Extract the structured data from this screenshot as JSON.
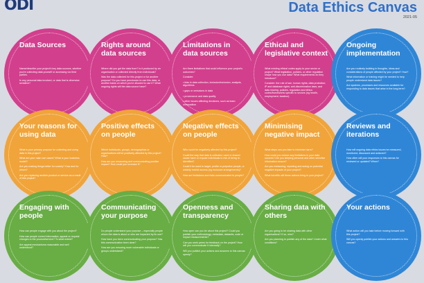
{
  "header": {
    "logo": "ODI",
    "title": "Data Ethics Canvas",
    "version": "2021-05"
  },
  "colors": {
    "pink": "#d23f8d",
    "orange": "#f0a43a",
    "green": "#69ad45",
    "blue": "#2f86d6",
    "title_blue": "#2f6fc9",
    "logo_navy": "#1f3b79"
  },
  "sections": [
    {
      "title": "Data Sources",
      "body": [
        "Name/describe your project's key data sources, whether you're collecting data yourself or accessing via third parties.",
        "Is any personal data involved, or data that is otherwise sensitive?"
      ]
    },
    {
      "title": "Rights around data sources",
      "body": [
        "Where did you get the data from? Is it produced by an organisation or collected directly from individuals?",
        "Was the data collected for this project or for another purpose? Do you have permission to use this data, or another basis on which you're allowed to use it? What ongoing rights will the data source have?"
      ]
    },
    {
      "title": "Limitations in data sources",
      "body": [
        "Are there limitations that could influence your project's outcomes?",
        "Consider:",
        "• bias in data collection, inclusion/exclusion, analysis, algorithms",
        "• gaps or omissions in data",
        "• provenance and data quality",
        "• other issues affecting decisions, such as team composition"
      ]
    },
    {
      "title": "Ethical and legislative context",
      "body": [
        "What existing ethical codes apply to your sector or project? What legislation, policies, or other regulation shape how you use data? What requirements do they introduce?",
        "Consider: the rule of law; human rights; data protection; IP and database rights; anti-discrimination laws; and data sharing, policies, regulation and ethics codes/frameworks specific to sectors (eg health, employment, taxation)."
      ]
    },
    {
      "title": "Ongoing implementation",
      "body": [
        "Are you routinely building in thoughts, ideas and considerations of people affected by your project? How?",
        "What information or training might be needed to help people understand data issues?",
        "Are systems, processes and resources available for responding to data issues that arise in the long-term?"
      ]
    },
    {
      "title": "Your reasons for using data",
      "body": [
        "What is your primary purpose for collecting and using data in this project?",
        "What are your main use cases? What is your business model?",
        "Are you making things better for society? How and for whom?",
        "Are you replacing another product or service as a result of this project?"
      ]
    },
    {
      "title": "Positive effects on people",
      "body": [
        "Which individuals, groups, demographics or organisations will be positively affected by this project? How?",
        "How are you measuring and communicating positive impact? How could you increase it?"
      ]
    },
    {
      "title": "Negative effects on people",
      "body": [
        "Who could be negatively affected by this project?",
        "Could the way that data is collected, used or shared cause harm or expose individuals to risk of being re-identified?",
        "Could it be used to target, profile or prejudice people, or unfairly restrict access (eg exclusive arrangements)?",
        "How are limitations and risks communicated to people?"
      ]
    },
    {
      "title": "Minimising negative impact",
      "body": [
        "What steps can you take to minimise harm?",
        "How could you reduce any limitations in your data sources? Are you keeping personal and other sensitive information secure?",
        "Are you measuring, reporting and acting on potential negative impacts of your project?",
        "What benefits will these actions bring to your project?"
      ]
    },
    {
      "title": "Reviews and iterations",
      "body": [
        "How will ongoing data ethics issues be measured, monitored, discussed and actioned?",
        "How often will your responses to this canvas be reviewed or updated? When?"
      ]
    },
    {
      "title": "Engaging with people",
      "body": [
        "How can people engage with you about the project?",
        "How can people correct information, appeal or request changes to the product/service? To what extent?",
        "Are appeal mechanisms reasonable and well understood?"
      ]
    },
    {
      "title": "Communicating your purpose",
      "body": [
        "Do people understand your purpose – especially people whom the data is about or who are impacted by its use?",
        "How have you been communicating your purpose? Has this communication been clear?",
        "How are you ensuring more vulnerable individuals or groups understand?"
      ]
    },
    {
      "title": "Openness and transparency",
      "body": [
        "How open can you be about this project? Could you publish your methodology, metadata, datasets, code or impact measurements?",
        "Can you seek peers for feedback on the project? How will you communicate it internally?",
        "Will you publish your actions and answers to this canvas openly?"
      ]
    },
    {
      "title": "Sharing data with others",
      "body": [
        "Are you going to be sharing data with other organisations? If so, who?",
        "Are you planning to publish any of the data? Under what conditions?"
      ]
    },
    {
      "title": "Your actions",
      "body": [
        "What action will you take before moving forward with this project?",
        "Will you openly publish your actions and answers to this canvas?"
      ]
    }
  ]
}
